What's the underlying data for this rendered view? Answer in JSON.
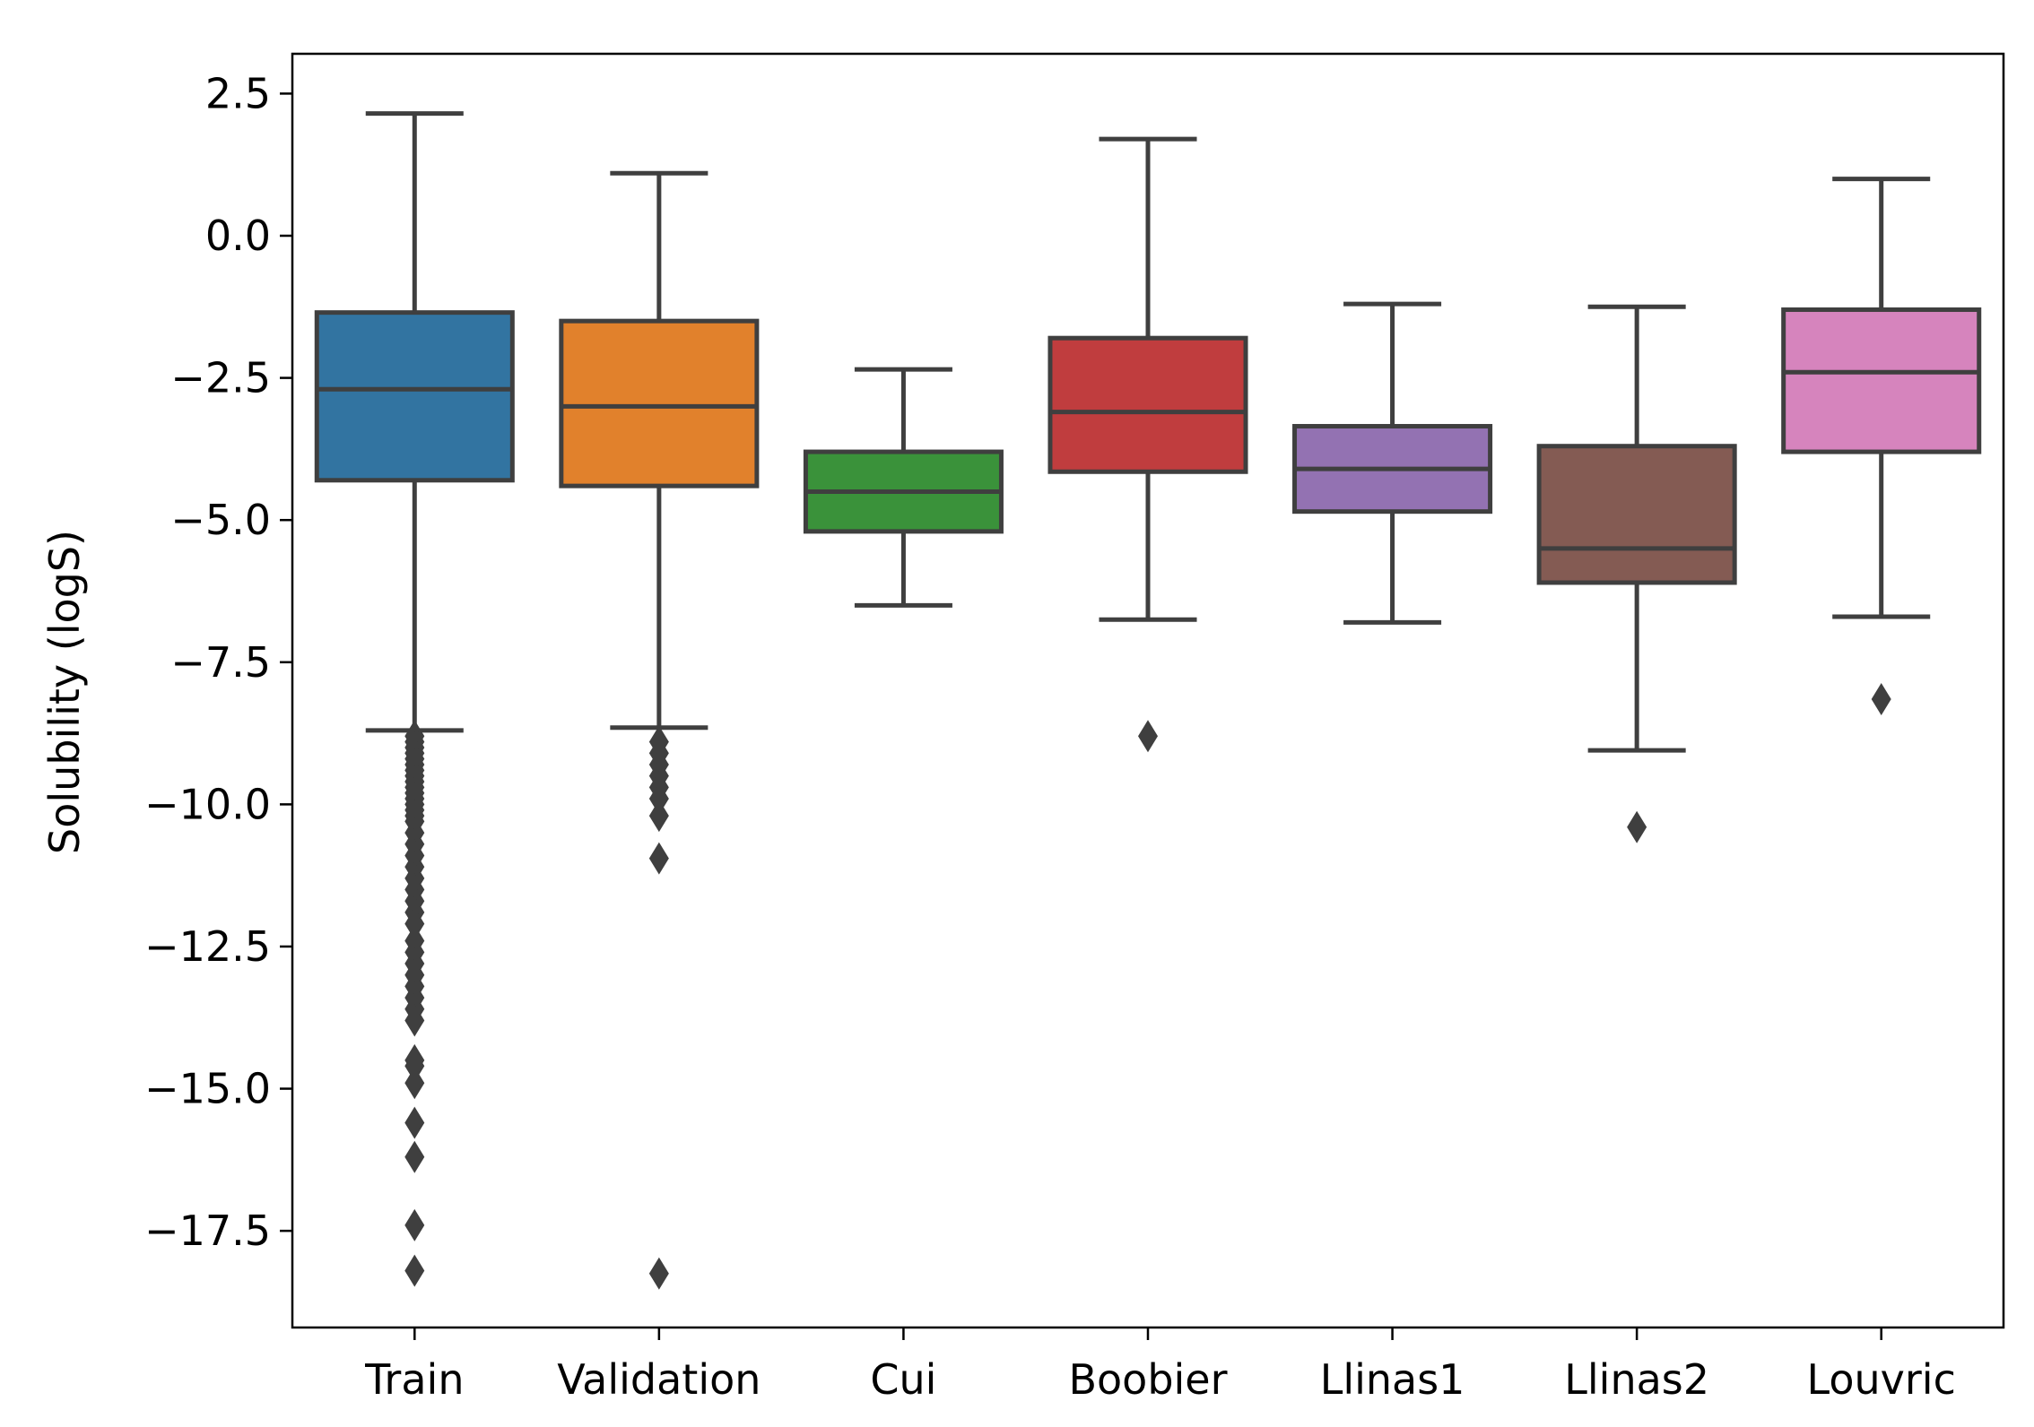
{
  "chart_data": {
    "type": "boxplot",
    "title": "",
    "xlabel": "",
    "ylabel": "Solubility (logS)",
    "ylim": [
      -19.2,
      3.2
    ],
    "yticks": [
      2.5,
      0.0,
      -2.5,
      -5.0,
      -7.5,
      -10.0,
      -12.5,
      -15.0,
      -17.5
    ],
    "ytick_labels": [
      "2.5",
      "0.0",
      "−2.5",
      "−5.0",
      "−7.5",
      "−10.0",
      "−12.5",
      "−15.0",
      "−17.5"
    ],
    "grid": false,
    "categories": [
      "Train",
      "Validation",
      "Cui",
      "Boobier",
      "Llinas1",
      "Llinas2",
      "Louvric"
    ],
    "boxes": [
      {
        "name": "Train",
        "color": "#3274a1",
        "whisker_low": -8.7,
        "q1": -4.3,
        "median": -2.7,
        "q3": -1.35,
        "whisker_high": 2.15,
        "outliers": [
          -8.8,
          -8.9,
          -9.0,
          -9.1,
          -9.2,
          -9.3,
          -9.4,
          -9.5,
          -9.6,
          -9.7,
          -9.8,
          -9.9,
          -10.0,
          -10.1,
          -10.2,
          -10.3,
          -10.5,
          -10.7,
          -10.9,
          -11.1,
          -11.3,
          -11.5,
          -11.7,
          -11.9,
          -12.1,
          -12.4,
          -12.6,
          -12.8,
          -13.0,
          -13.2,
          -13.4,
          -13.6,
          -13.8,
          -14.5,
          -14.6,
          -14.9,
          -15.6,
          -16.2,
          -17.4,
          -18.2
        ]
      },
      {
        "name": "Validation",
        "color": "#e1812c",
        "whisker_low": -8.65,
        "q1": -4.4,
        "median": -3.0,
        "q3": -1.5,
        "whisker_high": 1.1,
        "outliers": [
          -8.9,
          -9.1,
          -9.3,
          -9.5,
          -9.7,
          -9.9,
          -10.2,
          -10.95,
          -18.25
        ]
      },
      {
        "name": "Cui",
        "color": "#3a923a",
        "whisker_low": -6.5,
        "q1": -5.2,
        "median": -4.5,
        "q3": -3.8,
        "whisker_high": -2.35,
        "outliers": []
      },
      {
        "name": "Boobier",
        "color": "#c03d3e",
        "whisker_low": -6.75,
        "q1": -4.15,
        "median": -3.1,
        "q3": -1.8,
        "whisker_high": 1.7,
        "outliers": [
          -8.8
        ]
      },
      {
        "name": "Llinas1",
        "color": "#9372b2",
        "whisker_low": -6.8,
        "q1": -4.85,
        "median": -4.1,
        "q3": -3.35,
        "whisker_high": -1.2,
        "outliers": []
      },
      {
        "name": "Llinas2",
        "color": "#845b53",
        "whisker_low": -9.05,
        "q1": -6.1,
        "median": -5.5,
        "q3": -3.7,
        "whisker_high": -1.25,
        "outliers": [
          -10.4
        ]
      },
      {
        "name": "Louvric",
        "color": "#d684bd",
        "whisker_low": -6.7,
        "q1": -3.8,
        "median": -2.4,
        "q3": -1.3,
        "whisker_high": 1.0,
        "outliers": [
          -8.15
        ]
      }
    ]
  }
}
